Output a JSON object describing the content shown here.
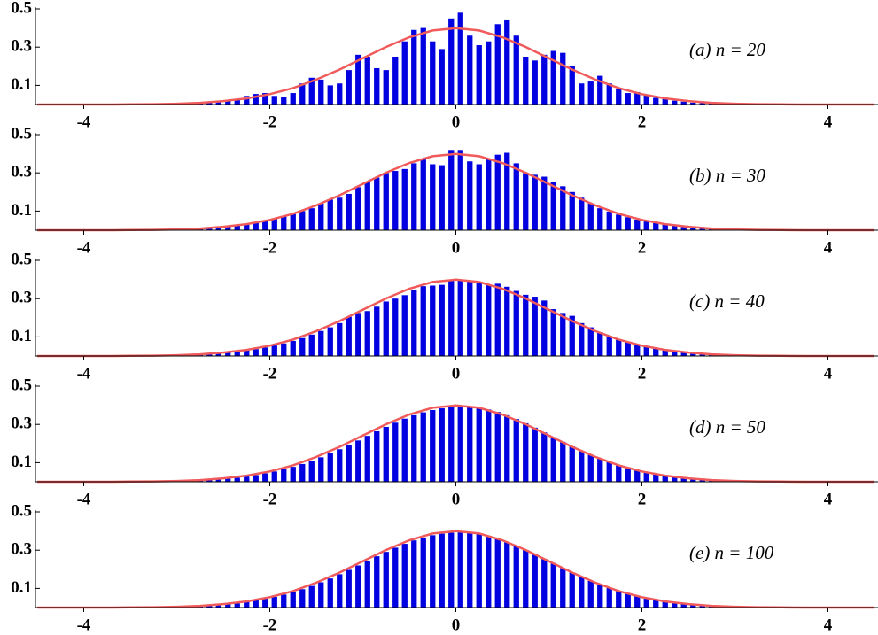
{
  "chart_data": [
    {
      "type": "histogram",
      "annotation": "(a) n = 20",
      "color": "#0000e0",
      "curve_color": "#f05a5a",
      "bins": [
        -3.0,
        -2.9,
        -2.8,
        -2.7,
        -2.6,
        -2.5,
        -2.4,
        -2.3,
        -2.2,
        -2.1,
        -2.0,
        -1.9,
        -1.8,
        -1.7,
        -1.6,
        -1.5,
        -1.4,
        -1.3,
        -1.2,
        -1.1,
        -1.0,
        -0.9,
        -0.8,
        -0.7,
        -0.6,
        -0.5,
        -0.4,
        -0.3,
        -0.2,
        -0.1,
        0.0,
        0.1,
        0.2,
        0.3,
        0.4,
        0.5,
        0.6,
        0.7,
        0.8,
        0.9,
        1.0,
        1.1,
        1.2,
        1.3,
        1.4,
        1.5,
        1.6,
        1.7,
        1.8,
        1.9,
        2.0,
        2.1,
        2.2,
        2.3,
        2.4,
        2.5,
        2.6,
        2.7,
        2.8,
        2.9,
        3.0
      ],
      "values": [
        0.003,
        0.004,
        0.006,
        0.01,
        0.015,
        0.02,
        0.03,
        0.045,
        0.055,
        0.06,
        0.045,
        0.04,
        0.06,
        0.11,
        0.14,
        0.13,
        0.1,
        0.11,
        0.18,
        0.26,
        0.25,
        0.19,
        0.18,
        0.25,
        0.33,
        0.39,
        0.4,
        0.33,
        0.29,
        0.45,
        0.48,
        0.36,
        0.31,
        0.33,
        0.42,
        0.44,
        0.36,
        0.25,
        0.23,
        0.26,
        0.28,
        0.27,
        0.2,
        0.11,
        0.12,
        0.15,
        0.11,
        0.08,
        0.06,
        0.065,
        0.05,
        0.035,
        0.028,
        0.02,
        0.015,
        0.01,
        0.007,
        0.005,
        0.004,
        0.003
      ],
      "curve_x": [
        -4.5,
        -4.25,
        -4,
        -3.75,
        -3.5,
        -3.25,
        -3,
        -2.75,
        -2.5,
        -2.25,
        -2,
        -1.75,
        -1.5,
        -1.25,
        -1,
        -0.75,
        -0.5,
        -0.25,
        0,
        0.25,
        0.5,
        0.75,
        1,
        1.25,
        1.5,
        1.75,
        2,
        2.25,
        2.5,
        2.75,
        3,
        3.25,
        3.5,
        3.75,
        4,
        4.25,
        4.5
      ],
      "curve_y": [
        0,
        0,
        0,
        0,
        0.001,
        0.002,
        0.004,
        0.009,
        0.018,
        0.032,
        0.054,
        0.086,
        0.13,
        0.183,
        0.242,
        0.301,
        0.352,
        0.387,
        0.399,
        0.387,
        0.352,
        0.301,
        0.242,
        0.183,
        0.13,
        0.086,
        0.054,
        0.032,
        0.018,
        0.009,
        0.004,
        0.002,
        0.001,
        0,
        0,
        0,
        0
      ],
      "xlim": [
        -4.5,
        4.5
      ],
      "xticks": [
        -4,
        -2,
        0,
        2,
        4
      ],
      "ylim": [
        0,
        0.5
      ],
      "yticks": [
        0.1,
        0.3,
        0.5
      ]
    },
    {
      "type": "histogram",
      "annotation": "(b) n = 30",
      "color": "#0000e0",
      "curve_color": "#f05a5a",
      "bins": [
        -3.0,
        -2.9,
        -2.8,
        -2.7,
        -2.6,
        -2.5,
        -2.4,
        -2.3,
        -2.2,
        -2.1,
        -2.0,
        -1.9,
        -1.8,
        -1.7,
        -1.6,
        -1.5,
        -1.4,
        -1.3,
        -1.2,
        -1.1,
        -1.0,
        -0.9,
        -0.8,
        -0.7,
        -0.6,
        -0.5,
        -0.4,
        -0.3,
        -0.2,
        -0.1,
        0.0,
        0.1,
        0.2,
        0.3,
        0.4,
        0.5,
        0.6,
        0.7,
        0.8,
        0.9,
        1.0,
        1.1,
        1.2,
        1.3,
        1.4,
        1.5,
        1.6,
        1.7,
        1.8,
        1.9,
        2.0,
        2.1,
        2.2,
        2.3,
        2.4,
        2.5,
        2.6,
        2.7,
        2.8,
        2.9,
        3.0
      ],
      "values": [
        0.003,
        0.005,
        0.008,
        0.011,
        0.015,
        0.02,
        0.026,
        0.033,
        0.041,
        0.05,
        0.062,
        0.072,
        0.085,
        0.1,
        0.115,
        0.14,
        0.16,
        0.17,
        0.19,
        0.225,
        0.25,
        0.275,
        0.3,
        0.31,
        0.32,
        0.35,
        0.37,
        0.345,
        0.34,
        0.42,
        0.42,
        0.36,
        0.345,
        0.37,
        0.395,
        0.405,
        0.35,
        0.3,
        0.29,
        0.28,
        0.25,
        0.23,
        0.2,
        0.17,
        0.14,
        0.115,
        0.098,
        0.082,
        0.068,
        0.056,
        0.046,
        0.037,
        0.029,
        0.023,
        0.018,
        0.014,
        0.01,
        0.008,
        0.006,
        0.004
      ],
      "curve_x": [
        -4.5,
        -4.25,
        -4,
        -3.75,
        -3.5,
        -3.25,
        -3,
        -2.75,
        -2.5,
        -2.25,
        -2,
        -1.75,
        -1.5,
        -1.25,
        -1,
        -0.75,
        -0.5,
        -0.25,
        0,
        0.25,
        0.5,
        0.75,
        1,
        1.25,
        1.5,
        1.75,
        2,
        2.25,
        2.5,
        2.75,
        3,
        3.25,
        3.5,
        3.75,
        4,
        4.25,
        4.5
      ],
      "curve_y": [
        0,
        0,
        0,
        0,
        0.001,
        0.002,
        0.004,
        0.009,
        0.018,
        0.032,
        0.054,
        0.086,
        0.13,
        0.183,
        0.242,
        0.301,
        0.352,
        0.387,
        0.399,
        0.387,
        0.352,
        0.301,
        0.242,
        0.183,
        0.13,
        0.086,
        0.054,
        0.032,
        0.018,
        0.009,
        0.004,
        0.002,
        0.001,
        0,
        0,
        0,
        0
      ],
      "xlim": [
        -4.5,
        4.5
      ],
      "xticks": [
        -4,
        -2,
        0,
        2,
        4
      ],
      "ylim": [
        0,
        0.5
      ],
      "yticks": [
        0.1,
        0.3,
        0.5
      ]
    },
    {
      "type": "histogram",
      "annotation": "(c) n = 40",
      "color": "#0000e0",
      "curve_color": "#f05a5a",
      "bins": [
        -3.0,
        -2.9,
        -2.8,
        -2.7,
        -2.6,
        -2.5,
        -2.4,
        -2.3,
        -2.2,
        -2.1,
        -2.0,
        -1.9,
        -1.8,
        -1.7,
        -1.6,
        -1.5,
        -1.4,
        -1.3,
        -1.2,
        -1.1,
        -1.0,
        -0.9,
        -0.8,
        -0.7,
        -0.6,
        -0.5,
        -0.4,
        -0.3,
        -0.2,
        -0.1,
        0.0,
        0.1,
        0.2,
        0.3,
        0.4,
        0.5,
        0.6,
        0.7,
        0.8,
        0.9,
        1.0,
        1.1,
        1.2,
        1.3,
        1.4,
        1.5,
        1.6,
        1.7,
        1.8,
        1.9,
        2.0,
        2.1,
        2.2,
        2.3,
        2.4,
        2.5,
        2.6,
        2.7,
        2.8,
        2.9,
        3.0
      ],
      "values": [
        0.003,
        0.005,
        0.007,
        0.01,
        0.013,
        0.017,
        0.022,
        0.028,
        0.036,
        0.045,
        0.055,
        0.066,
        0.079,
        0.094,
        0.112,
        0.131,
        0.15,
        0.172,
        0.205,
        0.225,
        0.235,
        0.258,
        0.285,
        0.3,
        0.318,
        0.345,
        0.365,
        0.368,
        0.372,
        0.398,
        0.4,
        0.395,
        0.385,
        0.372,
        0.378,
        0.362,
        0.34,
        0.32,
        0.31,
        0.29,
        0.245,
        0.225,
        0.21,
        0.172,
        0.15,
        0.125,
        0.105,
        0.088,
        0.074,
        0.062,
        0.051,
        0.041,
        0.033,
        0.026,
        0.02,
        0.015,
        0.012,
        0.009,
        0.007,
        0.005
      ],
      "curve_x": [
        -4.5,
        -4.25,
        -4,
        -3.75,
        -3.5,
        -3.25,
        -3,
        -2.75,
        -2.5,
        -2.25,
        -2,
        -1.75,
        -1.5,
        -1.25,
        -1,
        -0.75,
        -0.5,
        -0.25,
        0,
        0.25,
        0.5,
        0.75,
        1,
        1.25,
        1.5,
        1.75,
        2,
        2.25,
        2.5,
        2.75,
        3,
        3.25,
        3.5,
        3.75,
        4,
        4.25,
        4.5
      ],
      "curve_y": [
        0,
        0,
        0,
        0,
        0.001,
        0.002,
        0.004,
        0.009,
        0.018,
        0.032,
        0.054,
        0.086,
        0.13,
        0.183,
        0.242,
        0.301,
        0.352,
        0.387,
        0.399,
        0.387,
        0.352,
        0.301,
        0.242,
        0.183,
        0.13,
        0.086,
        0.054,
        0.032,
        0.018,
        0.009,
        0.004,
        0.002,
        0.001,
        0,
        0,
        0,
        0
      ],
      "xlim": [
        -4.5,
        4.5
      ],
      "xticks": [
        -4,
        -2,
        0,
        2,
        4
      ],
      "ylim": [
        0,
        0.5
      ],
      "yticks": [
        0.1,
        0.3,
        0.5
      ]
    },
    {
      "type": "histogram",
      "annotation": "(d) n = 50",
      "color": "#0000e0",
      "curve_color": "#f05a5a",
      "bins": [
        -3.0,
        -2.9,
        -2.8,
        -2.7,
        -2.6,
        -2.5,
        -2.4,
        -2.3,
        -2.2,
        -2.1,
        -2.0,
        -1.9,
        -1.8,
        -1.7,
        -1.6,
        -1.5,
        -1.4,
        -1.3,
        -1.2,
        -1.1,
        -1.0,
        -0.9,
        -0.8,
        -0.7,
        -0.6,
        -0.5,
        -0.4,
        -0.3,
        -0.2,
        -0.1,
        0.0,
        0.1,
        0.2,
        0.3,
        0.4,
        0.5,
        0.6,
        0.7,
        0.8,
        0.9,
        1.0,
        1.1,
        1.2,
        1.3,
        1.4,
        1.5,
        1.6,
        1.7,
        1.8,
        1.9,
        2.0,
        2.1,
        2.2,
        2.3,
        2.4,
        2.5,
        2.6,
        2.7,
        2.8,
        2.9,
        3.0
      ],
      "values": [
        0.003,
        0.005,
        0.007,
        0.009,
        0.012,
        0.016,
        0.021,
        0.027,
        0.035,
        0.044,
        0.054,
        0.065,
        0.078,
        0.093,
        0.11,
        0.128,
        0.148,
        0.17,
        0.193,
        0.216,
        0.24,
        0.264,
        0.287,
        0.309,
        0.33,
        0.348,
        0.363,
        0.375,
        0.384,
        0.39,
        0.396,
        0.394,
        0.388,
        0.378,
        0.365,
        0.348,
        0.328,
        0.306,
        0.283,
        0.258,
        0.233,
        0.209,
        0.185,
        0.162,
        0.141,
        0.121,
        0.103,
        0.087,
        0.073,
        0.061,
        0.05,
        0.04,
        0.032,
        0.025,
        0.02,
        0.015,
        0.012,
        0.009,
        0.007,
        0.005
      ],
      "curve_x": [
        -4.5,
        -4.25,
        -4,
        -3.75,
        -3.5,
        -3.25,
        -3,
        -2.75,
        -2.5,
        -2.25,
        -2,
        -1.75,
        -1.5,
        -1.25,
        -1,
        -0.75,
        -0.5,
        -0.25,
        0,
        0.25,
        0.5,
        0.75,
        1,
        1.25,
        1.5,
        1.75,
        2,
        2.25,
        2.5,
        2.75,
        3,
        3.25,
        3.5,
        3.75,
        4,
        4.25,
        4.5
      ],
      "curve_y": [
        0,
        0,
        0,
        0,
        0.001,
        0.002,
        0.004,
        0.009,
        0.018,
        0.032,
        0.054,
        0.086,
        0.13,
        0.183,
        0.242,
        0.301,
        0.352,
        0.387,
        0.399,
        0.387,
        0.352,
        0.301,
        0.242,
        0.183,
        0.13,
        0.086,
        0.054,
        0.032,
        0.018,
        0.009,
        0.004,
        0.002,
        0.001,
        0,
        0,
        0,
        0
      ],
      "xlim": [
        -4.5,
        4.5
      ],
      "xticks": [
        -4,
        -2,
        0,
        2,
        4
      ],
      "ylim": [
        0,
        0.5
      ],
      "yticks": [
        0.1,
        0.3,
        0.5
      ]
    },
    {
      "type": "histogram",
      "annotation": "(e) n = 100",
      "color": "#0000e0",
      "curve_color": "#f05a5a",
      "bins": [
        -3.0,
        -2.9,
        -2.8,
        -2.7,
        -2.6,
        -2.5,
        -2.4,
        -2.3,
        -2.2,
        -2.1,
        -2.0,
        -1.9,
        -1.8,
        -1.7,
        -1.6,
        -1.5,
        -1.4,
        -1.3,
        -1.2,
        -1.1,
        -1.0,
        -0.9,
        -0.8,
        -0.7,
        -0.6,
        -0.5,
        -0.4,
        -0.3,
        -0.2,
        -0.1,
        0.0,
        0.1,
        0.2,
        0.3,
        0.4,
        0.5,
        0.6,
        0.7,
        0.8,
        0.9,
        1.0,
        1.1,
        1.2,
        1.3,
        1.4,
        1.5,
        1.6,
        1.7,
        1.8,
        1.9,
        2.0,
        2.1,
        2.2,
        2.3,
        2.4,
        2.5,
        2.6,
        2.7,
        2.8,
        2.9,
        3.0
      ],
      "values": [
        0.004,
        0.006,
        0.008,
        0.01,
        0.013,
        0.017,
        0.022,
        0.029,
        0.037,
        0.046,
        0.056,
        0.068,
        0.081,
        0.096,
        0.113,
        0.132,
        0.152,
        0.174,
        0.197,
        0.22,
        0.244,
        0.268,
        0.291,
        0.313,
        0.333,
        0.351,
        0.366,
        0.378,
        0.386,
        0.391,
        0.393,
        0.39,
        0.384,
        0.373,
        0.36,
        0.343,
        0.323,
        0.301,
        0.278,
        0.254,
        0.23,
        0.206,
        0.183,
        0.16,
        0.139,
        0.12,
        0.102,
        0.086,
        0.072,
        0.06,
        0.049,
        0.04,
        0.032,
        0.025,
        0.02,
        0.015,
        0.012,
        0.009,
        0.007,
        0.005
      ],
      "curve_x": [
        -4.5,
        -4.25,
        -4,
        -3.75,
        -3.5,
        -3.25,
        -3,
        -2.75,
        -2.5,
        -2.25,
        -2,
        -1.75,
        -1.5,
        -1.25,
        -1,
        -0.75,
        -0.5,
        -0.25,
        0,
        0.25,
        0.5,
        0.75,
        1,
        1.25,
        1.5,
        1.75,
        2,
        2.25,
        2.5,
        2.75,
        3,
        3.25,
        3.5,
        3.75,
        4,
        4.25,
        4.5
      ],
      "curve_y": [
        0,
        0,
        0,
        0,
        0.001,
        0.002,
        0.004,
        0.009,
        0.018,
        0.032,
        0.054,
        0.086,
        0.13,
        0.183,
        0.242,
        0.301,
        0.352,
        0.387,
        0.399,
        0.387,
        0.352,
        0.301,
        0.242,
        0.183,
        0.13,
        0.086,
        0.054,
        0.032,
        0.018,
        0.009,
        0.004,
        0.002,
        0.001,
        0,
        0,
        0,
        0
      ],
      "xlim": [
        -4.5,
        4.5
      ],
      "xticks": [
        -4,
        -2,
        0,
        2,
        4
      ],
      "ylim": [
        0,
        0.5
      ],
      "yticks": [
        0.1,
        0.3,
        0.5
      ]
    }
  ]
}
